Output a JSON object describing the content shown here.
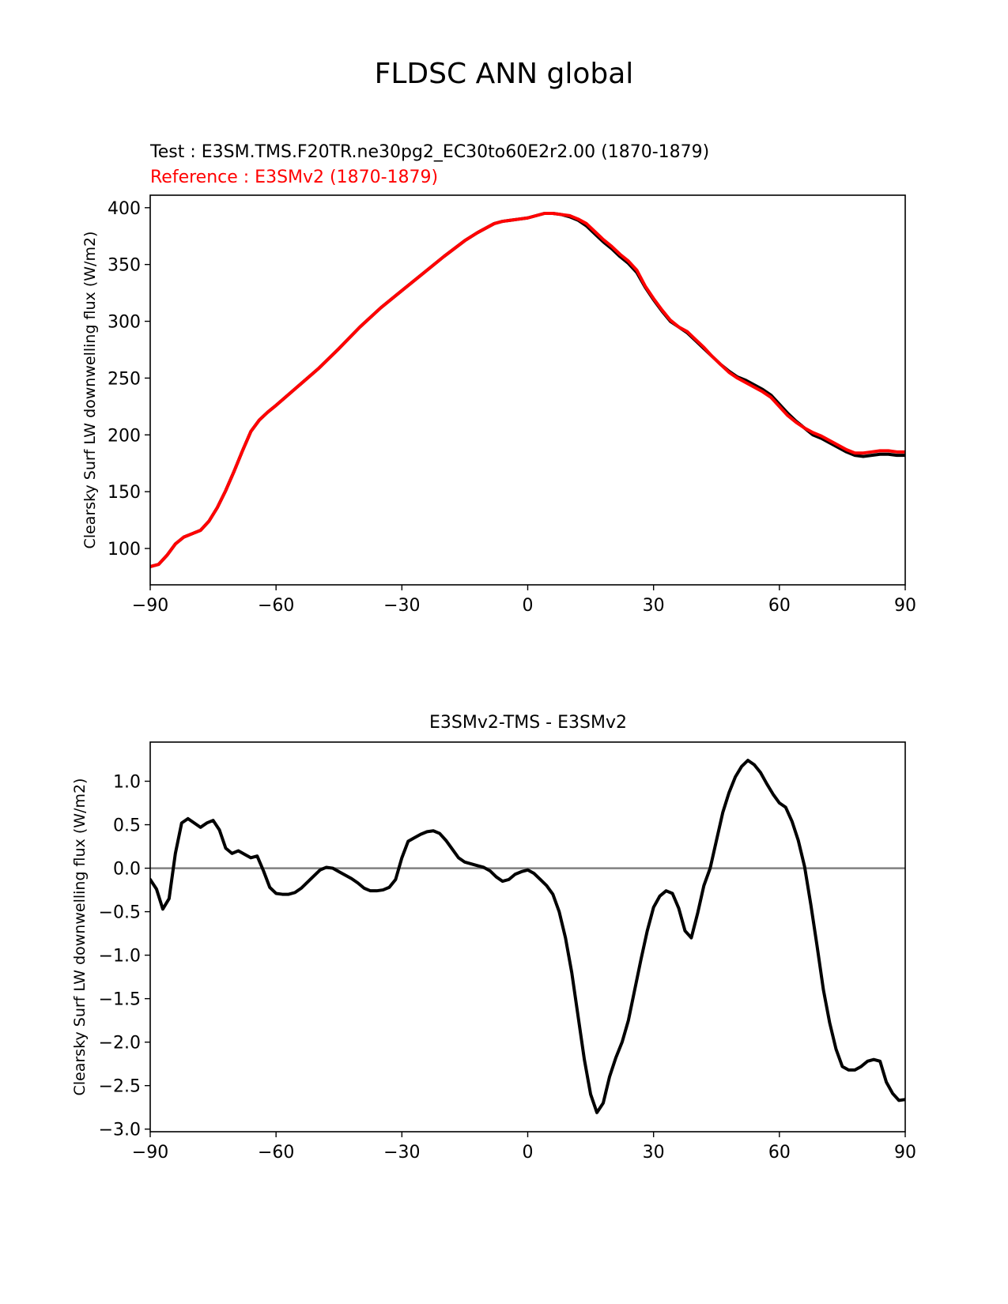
{
  "figure": {
    "title": "FLDSC ANN global"
  },
  "chart_data": [
    {
      "type": "line",
      "title": "",
      "subtitle_test": "Test : E3SM.TMS.F20TR.ne30pg2_EC30to60E2r2.00 (1870-1879)",
      "subtitle_reference": "Reference : E3SMv2 (1870-1879)",
      "xlabel": "",
      "ylabel": "Clearsky Surf LW downwelling flux (W/m2)",
      "xlim": [
        -90,
        90
      ],
      "ylim": [
        68,
        411
      ],
      "xticks": [
        -90,
        -60,
        -30,
        0,
        30,
        60,
        90
      ],
      "xtick_labels": [
        "−90",
        "−60",
        "−30",
        "0",
        "30",
        "60",
        "90"
      ],
      "yticks": [
        100,
        150,
        200,
        250,
        300,
        350,
        400
      ],
      "ytick_labels": [
        "100",
        "150",
        "200",
        "250",
        "300",
        "350",
        "400"
      ],
      "grid": false,
      "series": [
        {
          "color": "#000000",
          "x": [
            -90,
            -88,
            -86,
            -84,
            -82,
            -80,
            -78,
            -76,
            -74,
            -72,
            -70,
            -68,
            -66,
            -64,
            -62,
            -60,
            -55,
            -50,
            -45,
            -40,
            -35,
            -30,
            -25,
            -20,
            -15,
            -12,
            -10,
            -8,
            -6,
            -4,
            -2,
            0,
            2,
            4,
            6,
            8,
            10,
            12,
            14,
            16,
            18,
            20,
            22,
            24,
            26,
            28,
            30,
            32,
            34,
            36,
            38,
            40,
            42,
            44,
            46,
            48,
            50,
            52,
            54,
            56,
            58,
            60,
            62,
            64,
            66,
            68,
            70,
            72,
            74,
            76,
            78,
            80,
            82,
            84,
            86,
            88,
            90
          ],
          "y": [
            84,
            86,
            94,
            104,
            110,
            113,
            116,
            124,
            136,
            151,
            168,
            186,
            203,
            213,
            220,
            226,
            242,
            258,
            276,
            295,
            312,
            327,
            342,
            357,
            371,
            378,
            382,
            386,
            388,
            389,
            390,
            391,
            393,
            395,
            395,
            394,
            392,
            389,
            384,
            377,
            370,
            364,
            357,
            351,
            343,
            330,
            319,
            309,
            300,
            295,
            290,
            283,
            276,
            269,
            262,
            256,
            251,
            248,
            244,
            240,
            235,
            227,
            219,
            212,
            206,
            200,
            197,
            193,
            189,
            185,
            182,
            181,
            182,
            183,
            183,
            182,
            182
          ]
        },
        {
          "color": "#ff0000",
          "x": [
            -90,
            -88,
            -86,
            -84,
            -82,
            -80,
            -78,
            -76,
            -74,
            -72,
            -70,
            -68,
            -66,
            -64,
            -62,
            -60,
            -55,
            -50,
            -45,
            -40,
            -35,
            -30,
            -25,
            -20,
            -15,
            -12,
            -10,
            -8,
            -6,
            -4,
            -2,
            0,
            2,
            4,
            6,
            8,
            10,
            12,
            14,
            16,
            18,
            20,
            22,
            24,
            26,
            28,
            30,
            32,
            34,
            36,
            38,
            40,
            42,
            44,
            46,
            48,
            50,
            52,
            54,
            56,
            58,
            60,
            62,
            64,
            66,
            68,
            70,
            72,
            74,
            76,
            78,
            80,
            82,
            84,
            86,
            88,
            90
          ],
          "y": [
            84,
            86,
            94,
            104,
            110,
            113,
            116,
            124,
            136,
            151,
            168,
            186,
            203,
            213,
            220,
            226,
            242,
            258,
            276,
            295,
            312,
            327,
            342,
            357,
            371,
            378,
            382,
            386,
            388,
            389,
            390,
            391,
            393,
            395,
            395,
            394,
            393,
            390,
            386,
            379,
            372,
            366,
            359,
            353,
            345,
            331,
            320,
            310,
            301,
            295,
            291,
            284,
            277,
            269,
            262,
            255,
            250,
            246,
            242,
            238,
            233,
            225,
            217,
            211,
            206,
            202,
            199,
            195,
            191,
            187,
            184,
            184,
            185,
            186,
            186,
            185,
            185
          ]
        }
      ]
    },
    {
      "type": "line",
      "title": "E3SMv2-TMS - E3SMv2",
      "xlabel": "",
      "ylabel": "Clearsky Surf LW downwelling flux (W/m2)",
      "xlim": [
        -90,
        90
      ],
      "ylim": [
        -3.03,
        1.45
      ],
      "xticks": [
        -90,
        -60,
        -30,
        0,
        30,
        60,
        90
      ],
      "xtick_labels": [
        "−90",
        "−60",
        "−30",
        "0",
        "30",
        "60",
        "90"
      ],
      "yticks": [
        -3.0,
        -2.5,
        -2.0,
        -1.5,
        -1.0,
        -0.5,
        0.0,
        0.5,
        1.0
      ],
      "ytick_labels": [
        "−3.0",
        "−2.5",
        "−2.0",
        "−1.5",
        "−1.0",
        "−0.5",
        "0.0",
        "0.5",
        "1.0"
      ],
      "zero_line_color": "#808080",
      "grid": false,
      "series": [
        {
          "color": "#000000",
          "x": [
            -90,
            -88.5,
            -87,
            -85.5,
            -84,
            -82.5,
            -81,
            -79.5,
            -78,
            -76.5,
            -75,
            -73.5,
            -72,
            -70.5,
            -69,
            -67.5,
            -66,
            -64.5,
            -63,
            -61.5,
            -60,
            -58.5,
            -57,
            -55.5,
            -54,
            -52.5,
            -51,
            -49.5,
            -48,
            -46.5,
            -45,
            -43.5,
            -42,
            -40.5,
            -39,
            -37.5,
            -36,
            -34.5,
            -33,
            -31.5,
            -30,
            -28.5,
            -27,
            -25.5,
            -24,
            -22.5,
            -21,
            -19.5,
            -18,
            -16.5,
            -15,
            -13.5,
            -12,
            -10.5,
            -9,
            -7.5,
            -6,
            -4.5,
            -3,
            -1.5,
            0,
            1.5,
            3,
            4.5,
            6,
            7.5,
            9,
            10.5,
            12,
            13.5,
            15,
            16.5,
            18,
            19.5,
            21,
            22.5,
            24,
            25.5,
            27,
            28.5,
            30,
            31.5,
            33,
            34.5,
            36,
            37.5,
            39,
            40.5,
            42,
            43.5,
            45,
            46.5,
            48,
            49.5,
            51,
            52.5,
            54,
            55.5,
            57,
            58.5,
            60,
            61.5,
            63,
            64.5,
            66,
            67.5,
            69,
            70.5,
            72,
            73.5,
            75,
            76.5,
            78,
            79.5,
            81,
            82.5,
            84,
            85.5,
            87,
            88.5,
            90
          ],
          "y": [
            -0.13,
            -0.24,
            -0.47,
            -0.35,
            0.17,
            0.52,
            0.57,
            0.52,
            0.47,
            0.52,
            0.55,
            0.44,
            0.23,
            0.17,
            0.2,
            0.16,
            0.12,
            0.14,
            -0.03,
            -0.22,
            -0.29,
            -0.3,
            -0.3,
            -0.28,
            -0.23,
            -0.16,
            -0.09,
            -0.02,
            0.01,
            0.0,
            -0.04,
            -0.08,
            -0.12,
            -0.17,
            -0.23,
            -0.26,
            -0.26,
            -0.25,
            -0.22,
            -0.13,
            0.12,
            0.31,
            0.35,
            0.39,
            0.42,
            0.43,
            0.4,
            0.32,
            0.22,
            0.12,
            0.07,
            0.05,
            0.03,
            0.01,
            -0.03,
            -0.1,
            -0.15,
            -0.13,
            -0.07,
            -0.04,
            -0.02,
            -0.06,
            -0.13,
            -0.2,
            -0.3,
            -0.5,
            -0.8,
            -1.2,
            -1.7,
            -2.2,
            -2.6,
            -2.81,
            -2.7,
            -2.4,
            -2.18,
            -2.0,
            -1.75,
            -1.4,
            -1.05,
            -0.72,
            -0.45,
            -0.32,
            -0.26,
            -0.29,
            -0.46,
            -0.72,
            -0.8,
            -0.52,
            -0.2,
            0.0,
            0.32,
            0.64,
            0.87,
            1.05,
            1.17,
            1.24,
            1.19,
            1.1,
            0.97,
            0.85,
            0.75,
            0.7,
            0.54,
            0.32,
            0.02,
            -0.42,
            -0.9,
            -1.4,
            -1.78,
            -2.08,
            -2.28,
            -2.32,
            -2.32,
            -2.28,
            -2.22,
            -2.2,
            -2.22,
            -2.46,
            -2.59,
            -2.67,
            -2.66
          ]
        }
      ]
    }
  ]
}
